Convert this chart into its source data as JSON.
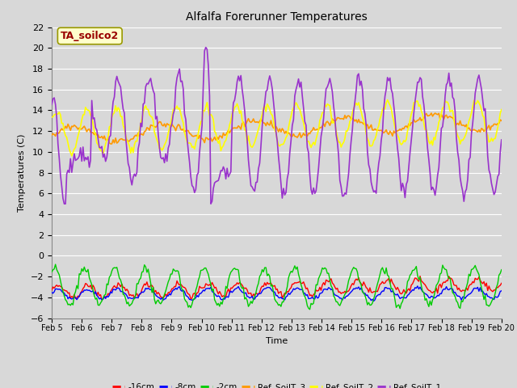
{
  "title": "Alfalfa Forerunner Temperatures",
  "xlabel": "Time",
  "ylabel": "Temperatures (C)",
  "ylim": [
    -6,
    22
  ],
  "yticks": [
    -6,
    -4,
    -2,
    0,
    2,
    4,
    6,
    8,
    10,
    12,
    14,
    16,
    18,
    20,
    22
  ],
  "x_labels": [
    "Feb 5",
    "Feb 6",
    "Feb 7",
    "Feb 8",
    "Feb 9",
    "Feb 10",
    "Feb 11",
    "Feb 12",
    "Feb 13",
    "Feb 14",
    "Feb 15",
    "Feb 16",
    "Feb 17",
    "Feb 18",
    "Feb 19",
    "Feb 20"
  ],
  "n_points": 360,
  "annotation_text": "TA_soilco2",
  "annotation_box_color": "#ffffcc",
  "annotation_text_color": "#990000",
  "background_color": "#d8d8d8",
  "plot_bg_color": "#d8d8d8",
  "grid_color": "#ffffff",
  "colors": {
    "m16cm": "#ff0000",
    "m8cm": "#0000ff",
    "m2cm": "#00cc00",
    "Ref_SoilT_3": "#ff9900",
    "Ref_SoilT_2": "#ffff00",
    "Ref_SoilT_1": "#9933cc"
  },
  "legend_labels": [
    "-16cm",
    "-8cm",
    "-2cm",
    "Ref_SoilT_3",
    "Ref_SoilT_2",
    "Ref_SoilT_1"
  ]
}
